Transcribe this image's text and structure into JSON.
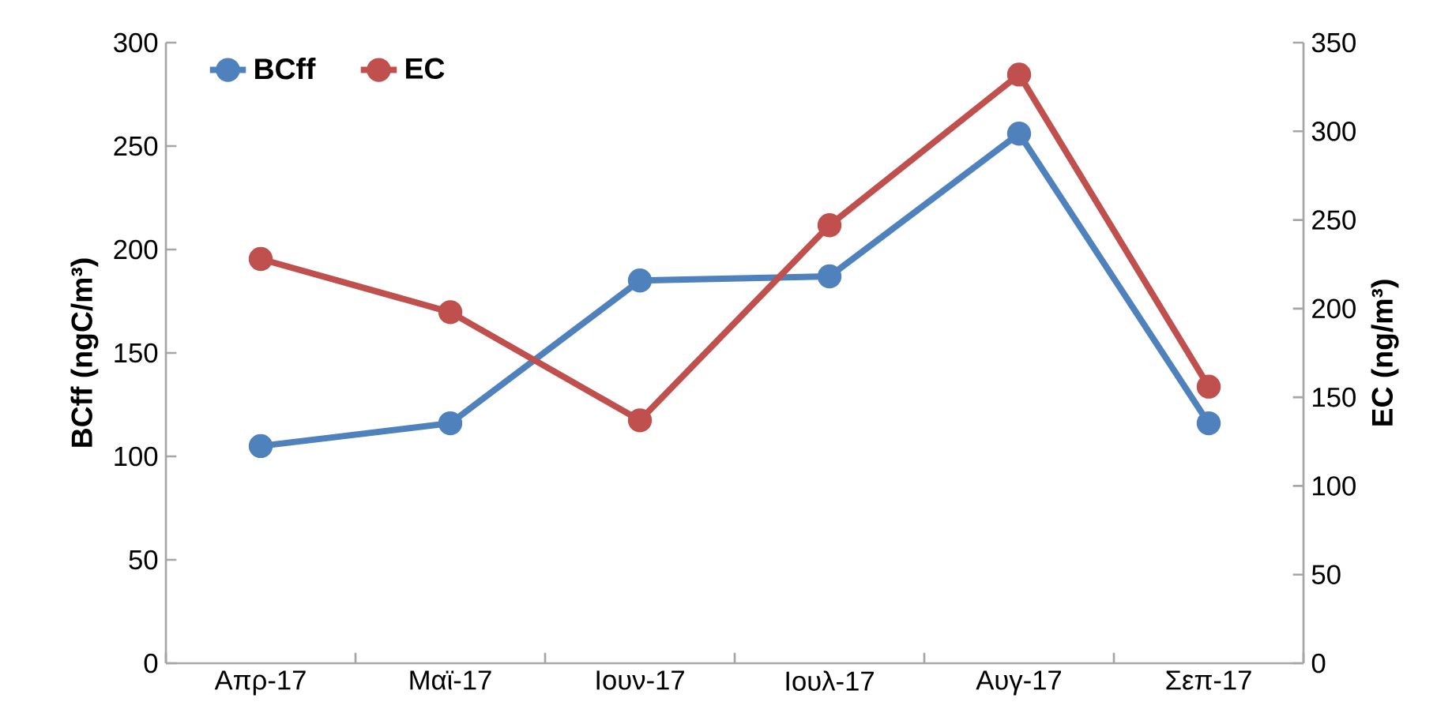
{
  "chart_data": {
    "type": "line",
    "categories": [
      "Απρ-17",
      "Μαϊ-17",
      "Ιουν-17",
      "Ιουλ-17",
      "Αυγ-17",
      "Σεπ-17"
    ],
    "series": [
      {
        "name": "BCff",
        "color": "#4f81bd",
        "values": [
          105,
          116,
          185,
          187,
          256,
          116
        ]
      },
      {
        "name": "EC",
        "color": "#c0504d",
        "axis": "y2",
        "values": [
          228,
          198,
          137,
          247,
          332,
          156
        ]
      }
    ],
    "ylabel": "BCff (ngC/m³)",
    "y2label": "EC (ng/m³)",
    "ylim": [
      0,
      300
    ],
    "yticks": [
      0,
      50,
      100,
      150,
      200,
      250,
      300
    ],
    "y2lim": [
      0,
      350
    ],
    "y2ticks": [
      0,
      50,
      100,
      150,
      200,
      250,
      300,
      350
    ],
    "legend": "top left",
    "marker": "circle",
    "line_style": "solid",
    "grid": false
  }
}
